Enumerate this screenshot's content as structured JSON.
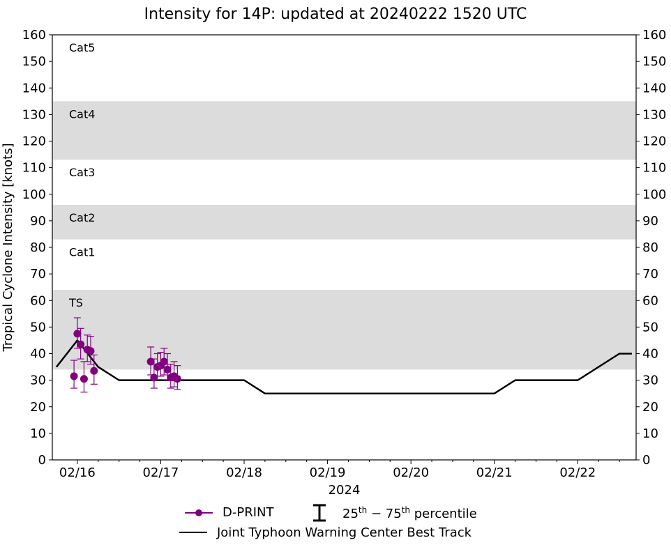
{
  "chart_data": {
    "type": "scatter",
    "title": "Intensity for 14P: updated at 20240222 1520 UTC",
    "xlabel": "2024",
    "ylabel": "Tropical Cyclone Intensity [knots]",
    "ylim": [
      0,
      160
    ],
    "xlim": [
      -0.3,
      6.7
    ],
    "y_ticks": [
      0,
      10,
      20,
      30,
      40,
      50,
      60,
      70,
      80,
      90,
      100,
      110,
      120,
      130,
      140,
      150,
      160
    ],
    "x_ticks": [
      {
        "x": 0,
        "label": "02/16"
      },
      {
        "x": 1,
        "label": "02/17"
      },
      {
        "x": 2,
        "label": "02/18"
      },
      {
        "x": 3,
        "label": "02/19"
      },
      {
        "x": 4,
        "label": "02/20"
      },
      {
        "x": 5,
        "label": "02/21"
      },
      {
        "x": 6,
        "label": "02/22"
      }
    ],
    "x_minor_ticks": [
      0.25,
      0.5,
      0.75,
      1.25,
      1.5,
      1.75,
      2.25,
      2.5,
      2.75,
      3.25,
      3.5,
      3.75,
      4.25,
      4.5,
      4.75,
      5.25,
      5.5,
      5.75,
      6.25,
      6.5
    ],
    "category_bands": [
      {
        "label": "TS",
        "y0": 34,
        "y1": 64,
        "shaded": true
      },
      {
        "label": "Cat1",
        "y0": 64,
        "y1": 83,
        "shaded": false
      },
      {
        "label": "Cat2",
        "y0": 83,
        "y1": 96,
        "shaded": true
      },
      {
        "label": "Cat3",
        "y0": 96,
        "y1": 113,
        "shaded": false
      },
      {
        "label": "Cat4",
        "y0": 113,
        "y1": 135,
        "shaded": true
      },
      {
        "label": "Cat5",
        "y0": 135,
        "y1": 160,
        "shaded": false
      }
    ],
    "series": [
      {
        "name": "D-PRINT",
        "color": "#800080",
        "points": [
          {
            "x": -0.04,
            "y": 31.5,
            "lo": 27,
            "hi": 37.5
          },
          {
            "x": 0.0,
            "y": 47.5,
            "lo": 42,
            "hi": 53.5
          },
          {
            "x": 0.04,
            "y": 43.5,
            "lo": 38,
            "hi": 49.5
          },
          {
            "x": 0.08,
            "y": 30.5,
            "lo": 25.5,
            "hi": 37
          },
          {
            "x": 0.12,
            "y": 41.5,
            "lo": 37,
            "hi": 47
          },
          {
            "x": 0.16,
            "y": 41,
            "lo": 36,
            "hi": 46.5
          },
          {
            "x": 0.2,
            "y": 33.5,
            "lo": 28.5,
            "hi": 39.5
          },
          {
            "x": 0.88,
            "y": 37,
            "lo": 32,
            "hi": 42.5
          },
          {
            "x": 0.92,
            "y": 31,
            "lo": 27,
            "hi": 38
          },
          {
            "x": 0.96,
            "y": 35,
            "lo": 31.5,
            "hi": 40
          },
          {
            "x": 1.0,
            "y": 35.5,
            "lo": 31.5,
            "hi": 40.5
          },
          {
            "x": 1.04,
            "y": 37,
            "lo": 32,
            "hi": 42
          },
          {
            "x": 1.08,
            "y": 34,
            "lo": 30,
            "hi": 40
          },
          {
            "x": 1.12,
            "y": 31,
            "lo": 27,
            "hi": 36
          },
          {
            "x": 1.16,
            "y": 31.5,
            "lo": 27.5,
            "hi": 37
          },
          {
            "x": 1.2,
            "y": 30.5,
            "lo": 26.5,
            "hi": 35.5
          }
        ]
      },
      {
        "name": "Joint Typhoon Warning Center Best Track",
        "color": "#000000",
        "points": [
          {
            "x": -0.25,
            "y": 35
          },
          {
            "x": 0.0,
            "y": 45
          },
          {
            "x": 0.25,
            "y": 35
          },
          {
            "x": 0.5,
            "y": 30
          },
          {
            "x": 0.75,
            "y": 30
          },
          {
            "x": 1.0,
            "y": 30
          },
          {
            "x": 1.25,
            "y": 30
          },
          {
            "x": 1.5,
            "y": 30
          },
          {
            "x": 1.75,
            "y": 30
          },
          {
            "x": 2.0,
            "y": 30
          },
          {
            "x": 2.25,
            "y": 25
          },
          {
            "x": 5.0,
            "y": 25
          },
          {
            "x": 5.25,
            "y": 30
          },
          {
            "x": 6.0,
            "y": 30
          },
          {
            "x": 6.5,
            "y": 40
          },
          {
            "x": 6.65,
            "y": 40
          }
        ]
      }
    ],
    "legend": {
      "placement": "bottom-center",
      "entries": [
        "D-PRINT",
        "25th-75th percentile",
        "Joint Typhoon Warning Center Best Track"
      ]
    }
  },
  "legend": {
    "dprint": "D-PRINT",
    "pct_25": "25",
    "pct_sup_25": "th",
    "pct_dash": " − ",
    "pct_75": "75",
    "pct_sup_75": "th",
    "pct_word": " percentile",
    "best_track": "Joint Typhoon Warning Center Best Track"
  },
  "colors": {
    "band": "#dcdcdc",
    "dprint": "#800080",
    "best_track": "#000000"
  }
}
